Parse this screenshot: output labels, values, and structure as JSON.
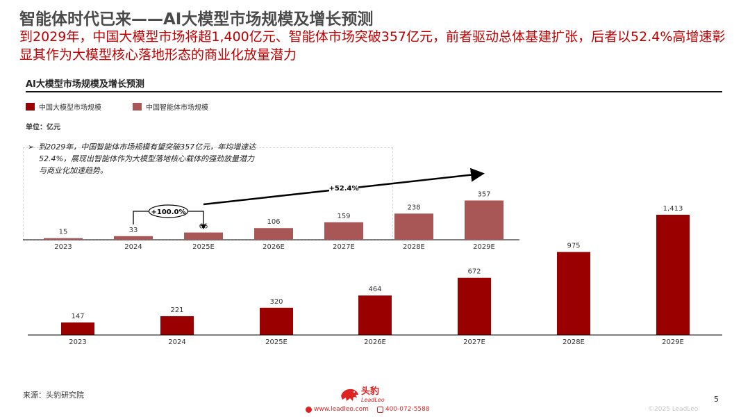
{
  "header": {
    "title": "智能体时代已来——AI大模型市场规模及增长预测",
    "subtitle": "到2029年，中国大模型市场将超1,400亿元、智能体市场突破357亿元，前者驱动总体基建扩张，后者以52.4%高增速彰显其作为大模型核心落地形态的商业化放量潜力"
  },
  "section": {
    "title": "AI大模型市场规模及增长预测",
    "unit": "单位：亿元"
  },
  "legend": {
    "llm": "中国大模型市场规模",
    "agent": "中国智能体市场规模"
  },
  "callout": {
    "bullet": "➢",
    "line1": "到2029年，中国智能体市场规模有望突破357亿元，年均增速达",
    "line2": "52.4%，展现出智能体作为大模型落地核心载体的强劲放量潜力",
    "line3": "与商业化加速趋势。"
  },
  "colors": {
    "llm": "#9b0000",
    "agent": "#a85656",
    "accent": "#c00000"
  },
  "chart_data": [
    {
      "type": "bar",
      "title": "中国智能体市场规模",
      "categories": [
        "2023",
        "2024",
        "2025E",
        "2026E",
        "2027E",
        "2028E",
        "2029E"
      ],
      "values": [
        15,
        33,
        66,
        106,
        159,
        238,
        357
      ],
      "value_labels": [
        "15",
        "33",
        "66",
        "106",
        "159",
        "238",
        "357"
      ],
      "annotations": [
        {
          "text": "+100.0%",
          "from": "2024",
          "to": "2025E"
        },
        {
          "text": "+52.4%",
          "from": "2025E",
          "to": "2029E"
        }
      ],
      "ylim": [
        0,
        360
      ]
    },
    {
      "type": "bar",
      "title": "中国大模型市场规模",
      "categories": [
        "2023",
        "2024",
        "2025E",
        "2026E",
        "2027E",
        "2028E",
        "2029E"
      ],
      "values": [
        147,
        221,
        320,
        464,
        672,
        975,
        1413
      ],
      "value_labels": [
        "147",
        "221",
        "320",
        "464",
        "672",
        "975",
        "1,413"
      ],
      "ylim": [
        0,
        1413
      ]
    }
  ],
  "footer": {
    "source": "来源：头豹研究院",
    "page": "5",
    "copyright": "©2025 LeadLeo",
    "logo_cn": "头豹",
    "logo_en": "LeadLeo",
    "website": "www.leadleo.com",
    "phone": "400-072-5588"
  }
}
